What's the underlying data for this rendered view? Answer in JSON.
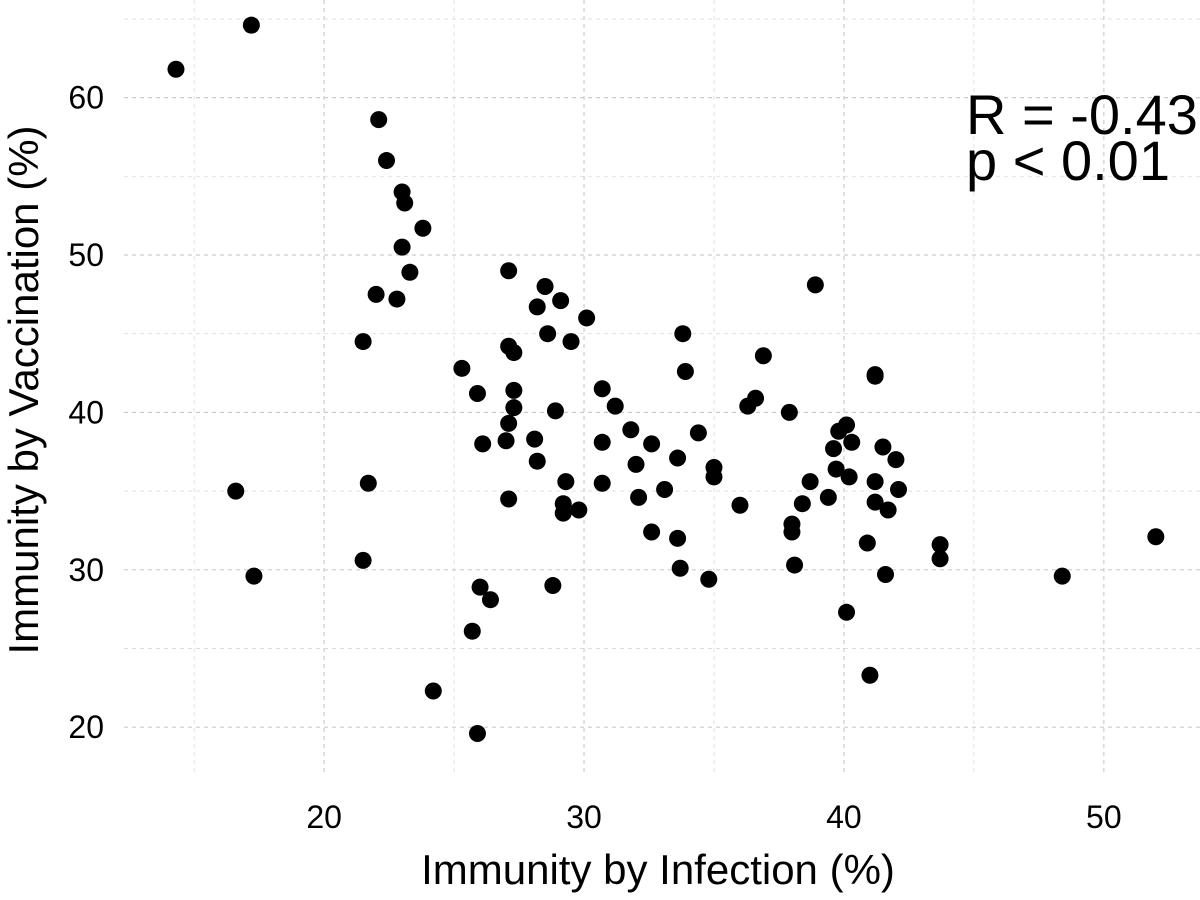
{
  "chart_data": {
    "type": "scatter",
    "title": "",
    "xlabel": "Immunity by Infection (%)",
    "ylabel": "Immunity by Vaccination (%)",
    "xlim": [
      12.3,
      53.7
    ],
    "ylim": [
      16.9,
      66.2
    ],
    "x_ticks": [
      20,
      30,
      40,
      50
    ],
    "y_ticks": [
      20,
      30,
      40,
      50,
      60
    ],
    "grid": true,
    "annotations": [
      "R = -0.43",
      "p < 0.01"
    ],
    "point_color": "#000000",
    "points": [
      {
        "x": 14.3,
        "y": 61.8
      },
      {
        "x": 17.2,
        "y": 64.6
      },
      {
        "x": 16.6,
        "y": 35.0
      },
      {
        "x": 17.3,
        "y": 29.6
      },
      {
        "x": 21.5,
        "y": 44.5
      },
      {
        "x": 21.7,
        "y": 35.5
      },
      {
        "x": 21.5,
        "y": 30.6
      },
      {
        "x": 22.0,
        "y": 47.5
      },
      {
        "x": 22.1,
        "y": 58.6
      },
      {
        "x": 22.4,
        "y": 56.0
      },
      {
        "x": 22.8,
        "y": 47.2
      },
      {
        "x": 23.0,
        "y": 54.0
      },
      {
        "x": 23.1,
        "y": 53.3
      },
      {
        "x": 23.0,
        "y": 50.5
      },
      {
        "x": 23.3,
        "y": 48.9
      },
      {
        "x": 23.8,
        "y": 51.7
      },
      {
        "x": 24.2,
        "y": 22.3
      },
      {
        "x": 25.3,
        "y": 42.8
      },
      {
        "x": 25.7,
        "y": 26.1
      },
      {
        "x": 25.9,
        "y": 41.2
      },
      {
        "x": 26.0,
        "y": 28.9
      },
      {
        "x": 26.1,
        "y": 38.0
      },
      {
        "x": 26.4,
        "y": 28.1
      },
      {
        "x": 25.9,
        "y": 19.6
      },
      {
        "x": 27.0,
        "y": 38.2
      },
      {
        "x": 27.1,
        "y": 39.3
      },
      {
        "x": 27.1,
        "y": 44.2
      },
      {
        "x": 27.1,
        "y": 49.0
      },
      {
        "x": 27.3,
        "y": 43.8
      },
      {
        "x": 27.3,
        "y": 41.4
      },
      {
        "x": 27.3,
        "y": 40.3
      },
      {
        "x": 27.1,
        "y": 34.5
      },
      {
        "x": 28.1,
        "y": 38.3
      },
      {
        "x": 28.2,
        "y": 46.7
      },
      {
        "x": 28.2,
        "y": 36.9
      },
      {
        "x": 28.5,
        "y": 48.0
      },
      {
        "x": 28.6,
        "y": 45.0
      },
      {
        "x": 28.8,
        "y": 29.0
      },
      {
        "x": 28.9,
        "y": 40.1
      },
      {
        "x": 29.1,
        "y": 47.1
      },
      {
        "x": 29.2,
        "y": 34.2
      },
      {
        "x": 29.2,
        "y": 33.6
      },
      {
        "x": 29.3,
        "y": 35.6
      },
      {
        "x": 29.5,
        "y": 44.5
      },
      {
        "x": 29.8,
        "y": 33.8
      },
      {
        "x": 30.1,
        "y": 46.0
      },
      {
        "x": 30.7,
        "y": 38.1
      },
      {
        "x": 30.7,
        "y": 41.5
      },
      {
        "x": 30.7,
        "y": 35.5
      },
      {
        "x": 31.2,
        "y": 40.4
      },
      {
        "x": 31.8,
        "y": 38.9
      },
      {
        "x": 32.0,
        "y": 36.7
      },
      {
        "x": 32.1,
        "y": 34.6
      },
      {
        "x": 32.6,
        "y": 38.0
      },
      {
        "x": 32.6,
        "y": 32.4
      },
      {
        "x": 33.1,
        "y": 35.1
      },
      {
        "x": 33.6,
        "y": 37.1
      },
      {
        "x": 33.6,
        "y": 32.0
      },
      {
        "x": 33.7,
        "y": 30.1
      },
      {
        "x": 33.8,
        "y": 45.0
      },
      {
        "x": 33.9,
        "y": 42.6
      },
      {
        "x": 34.4,
        "y": 38.7
      },
      {
        "x": 34.8,
        "y": 29.4
      },
      {
        "x": 35.0,
        "y": 35.9
      },
      {
        "x": 35.0,
        "y": 36.5
      },
      {
        "x": 36.0,
        "y": 34.1
      },
      {
        "x": 36.3,
        "y": 40.4
      },
      {
        "x": 36.6,
        "y": 40.9
      },
      {
        "x": 36.9,
        "y": 43.6
      },
      {
        "x": 37.9,
        "y": 40.0
      },
      {
        "x": 38.0,
        "y": 32.9
      },
      {
        "x": 38.0,
        "y": 32.4
      },
      {
        "x": 38.1,
        "y": 30.3
      },
      {
        "x": 38.4,
        "y": 34.2
      },
      {
        "x": 38.7,
        "y": 35.6
      },
      {
        "x": 38.9,
        "y": 48.1
      },
      {
        "x": 39.4,
        "y": 34.6
      },
      {
        "x": 39.6,
        "y": 37.7
      },
      {
        "x": 39.7,
        "y": 36.4
      },
      {
        "x": 39.8,
        "y": 38.8
      },
      {
        "x": 40.1,
        "y": 39.2
      },
      {
        "x": 40.2,
        "y": 35.9
      },
      {
        "x": 40.1,
        "y": 27.3
      },
      {
        "x": 40.3,
        "y": 38.1
      },
      {
        "x": 40.9,
        "y": 31.7
      },
      {
        "x": 41.0,
        "y": 23.3
      },
      {
        "x": 41.2,
        "y": 42.3
      },
      {
        "x": 41.2,
        "y": 42.4
      },
      {
        "x": 41.2,
        "y": 35.6
      },
      {
        "x": 41.2,
        "y": 34.3
      },
      {
        "x": 41.5,
        "y": 37.8
      },
      {
        "x": 41.6,
        "y": 29.7
      },
      {
        "x": 41.7,
        "y": 33.8
      },
      {
        "x": 42.0,
        "y": 37.0
      },
      {
        "x": 42.1,
        "y": 35.1
      },
      {
        "x": 43.7,
        "y": 31.6
      },
      {
        "x": 43.7,
        "y": 30.7
      },
      {
        "x": 48.4,
        "y": 29.6
      },
      {
        "x": 52.0,
        "y": 32.1
      }
    ]
  }
}
